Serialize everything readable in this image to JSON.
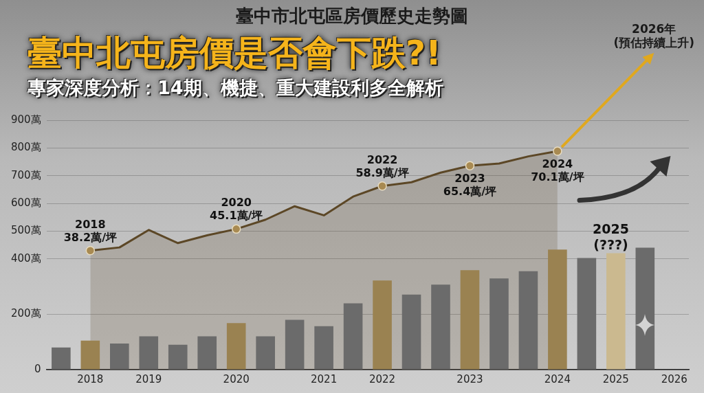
{
  "chart_data": {
    "type": "bar",
    "title": "臺中市北屯區房價歷史走勢圖",
    "subtitle": "臺中北屯房價是否會下跌?!",
    "annotations": [
      "專家深度分析：14期、機捷、重大建設利多全解析",
      "2025\n(???)",
      "2026年\n(預估持續上升)"
    ],
    "categories": [
      null,
      "2018",
      null,
      "2019",
      null,
      null,
      "2020",
      null,
      null,
      "2021",
      null,
      "2022",
      null,
      null,
      "2023",
      null,
      null,
      "2024",
      null,
      "2025",
      null,
      "2026"
    ],
    "series": [
      {
        "colors": [
          "#6b6b6b",
          "#9a8251",
          "#6b6b6b",
          "#6b6b6b",
          "#6b6b6b",
          "#6b6b6b",
          "#9a8251",
          "#6b6b6b",
          "#6b6b6b",
          "#6b6b6b",
          "#6b6b6b",
          "#9a8251",
          "#6b6b6b",
          "#6b6b6b",
          "#9a8251",
          "#6b6b6b",
          "#6b6b6b",
          "#9a8251",
          "#6b6b6b",
          "#cbb98f",
          "#6b6b6b",
          "#6b6b6b"
        ],
        "values": [
          80,
          105,
          94,
          120,
          90,
          120,
          168,
          120,
          180,
          157,
          239,
          322,
          271,
          307,
          359,
          329,
          355,
          433,
          403,
          420,
          440,
          null
        ]
      },
      {
        "type": "area",
        "axis": "y2",
        "color": "#5c4726",
        "values": [
          null,
          38.2,
          39.2,
          44.8,
          40.6,
          43.1,
          45.1,
          48.1,
          52.4,
          49.5,
          55.5,
          58.9,
          60.1,
          63.2,
          65.4,
          66.1,
          68.4,
          70.1,
          null,
          null,
          null,
          null
        ],
        "value_labels": [
          null,
          "2018\n38.2萬/坪",
          null,
          null,
          null,
          null,
          "2020\n45.1萬/坪",
          null,
          null,
          null,
          null,
          "2022\n58.9萬/坪",
          null,
          null,
          "2023\n65.4萬/坪",
          null,
          null,
          "2024\n70.1萬/坪",
          null,
          null,
          null,
          null
        ]
      }
    ],
    "ylim": [
      0,
      900
    ],
    "yticks": [
      0,
      {
        "value": 200,
        "label": "200萬"
      },
      {
        "value": 400,
        "label": "400萬"
      },
      {
        "value": 500,
        "label": "500萬"
      },
      {
        "value": 600,
        "label": "600萬"
      },
      {
        "value": 700,
        "label": "700萬"
      },
      {
        "value": 800,
        "label": "800萬"
      },
      {
        "value": 900,
        "label": "900萬"
      }
    ],
    "y2lim": [
      0,
      80
    ],
    "grid": "y",
    "legend": false
  }
}
